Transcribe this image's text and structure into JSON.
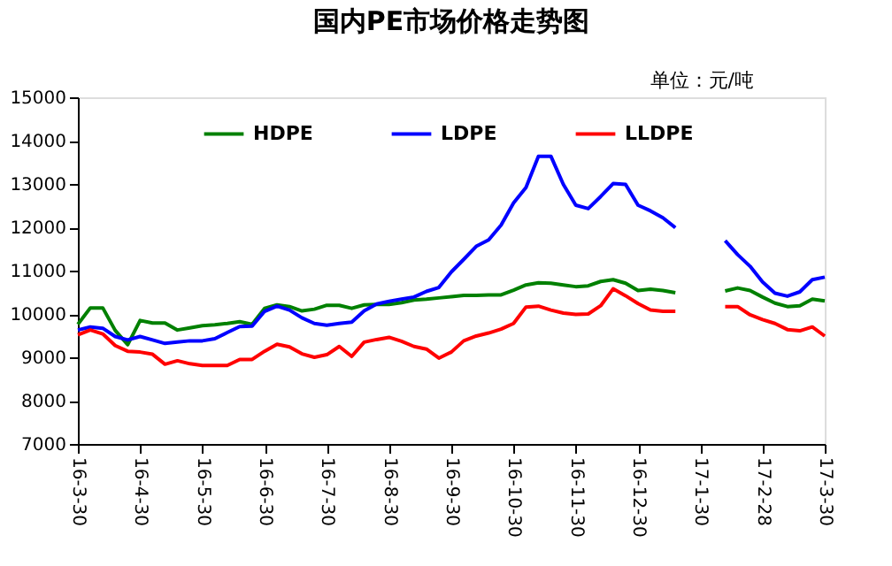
{
  "chart_data": {
    "type": "line",
    "title": "国内PE市场价格走势图",
    "annotations": [
      "单位：元/吨"
    ],
    "categories": [
      "16-3-30",
      null,
      null,
      null,
      null,
      "16-4-30",
      null,
      null,
      null,
      null,
      "16-5-30",
      null,
      null,
      null,
      null,
      "16-6-30",
      null,
      null,
      null,
      null,
      "16-7-30",
      null,
      null,
      null,
      null,
      "16-8-30",
      null,
      null,
      null,
      null,
      "16-9-30",
      null,
      null,
      null,
      null,
      "16-10-30",
      null,
      null,
      null,
      null,
      "16-11-30",
      null,
      null,
      null,
      null,
      "16-12-30",
      null,
      null,
      null,
      null,
      "17-1-30",
      null,
      null,
      null,
      null,
      "17-2-28",
      null,
      null,
      null,
      null,
      "17-3-30"
    ],
    "ylim": [
      7000,
      15000
    ],
    "yticks": [
      7000,
      8000,
      9000,
      10000,
      11000,
      12000,
      13000,
      14000,
      15000
    ],
    "grid": false,
    "legend": "top",
    "marker": "none",
    "line_style": "solid",
    "series": [
      {
        "name": "HDPE",
        "color": "#008000",
        "values": [
          9760,
          10140,
          10140,
          9620,
          9290,
          9850,
          9790,
          9790,
          9630,
          9680,
          9730,
          9750,
          9780,
          9820,
          9760,
          10130,
          10210,
          10170,
          10070,
          10110,
          10200,
          10200,
          10130,
          10210,
          10220,
          10220,
          10260,
          10320,
          10340,
          10370,
          10400,
          10430,
          10430,
          10440,
          10440,
          10550,
          10670,
          10720,
          10710,
          10670,
          10630,
          10650,
          10750,
          10790,
          10710,
          10540,
          10570,
          10540,
          10490,
          null,
          null,
          null,
          10530,
          10600,
          10540,
          10390,
          10250,
          10170,
          10190,
          10340,
          10300
        ]
      },
      {
        "name": "LDPE",
        "color": "#0000ff",
        "values": [
          9630,
          9700,
          9670,
          9480,
          9400,
          9480,
          9400,
          9320,
          9350,
          9380,
          9380,
          9430,
          9570,
          9710,
          9720,
          10060,
          10180,
          10090,
          9910,
          9780,
          9740,
          9780,
          9810,
          10070,
          10230,
          10290,
          10340,
          10390,
          10520,
          10610,
          10970,
          11260,
          11560,
          11710,
          12050,
          12560,
          12920,
          13640,
          13640,
          12990,
          12510,
          12430,
          12710,
          13010,
          12990,
          12510,
          12380,
          12220,
          11990,
          null,
          null,
          null,
          11690,
          11370,
          11100,
          10740,
          10480,
          10410,
          10510,
          10790,
          10850
        ]
      },
      {
        "name": "LLDPE",
        "color": "#ff0000",
        "values": [
          9520,
          9630,
          9540,
          9270,
          9140,
          9120,
          9070,
          8840,
          8920,
          8850,
          8810,
          8810,
          8810,
          8950,
          8950,
          9140,
          9300,
          9240,
          9080,
          9000,
          9060,
          9250,
          9020,
          9350,
          9410,
          9460,
          9370,
          9250,
          9190,
          8980,
          9120,
          9380,
          9490,
          9560,
          9650,
          9780,
          10160,
          10180,
          10090,
          10020,
          9990,
          10000,
          10190,
          10580,
          10420,
          10240,
          10090,
          10060,
          10060,
          null,
          null,
          null,
          10170,
          10170,
          9980,
          9870,
          9780,
          9640,
          9610,
          9700,
          9490
        ]
      }
    ]
  }
}
